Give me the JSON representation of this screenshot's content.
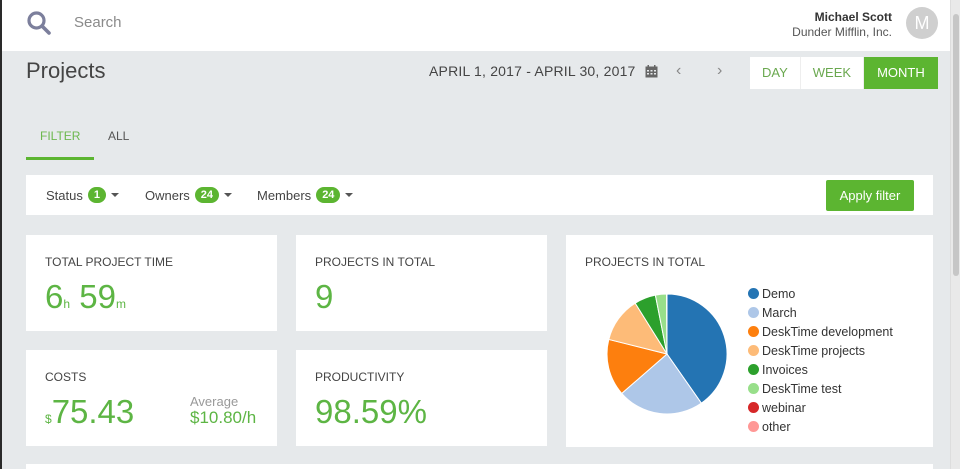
{
  "header": {
    "search_placeholder": "Search",
    "user_name": "Michael Scott",
    "user_company": "Dunder Mifflin, Inc.",
    "avatar_initial": "M"
  },
  "page": {
    "title": "Projects",
    "date_range": "APRIL 1, 2017 - APRIL 30, 2017",
    "prev_label": "‹",
    "next_label": "›",
    "periods": [
      {
        "label": "DAY",
        "active": false
      },
      {
        "label": "WEEK",
        "active": false
      },
      {
        "label": "MONTH",
        "active": true
      }
    ]
  },
  "tabs": [
    {
      "label": "FILTER",
      "active": true
    },
    {
      "label": "ALL",
      "active": false
    }
  ],
  "filters": {
    "status": {
      "label": "Status",
      "count": "1"
    },
    "owners": {
      "label": "Owners",
      "count": "24"
    },
    "members": {
      "label": "Members",
      "count": "24"
    },
    "apply_label": "Apply filter"
  },
  "cards": {
    "total_time": {
      "title": "TOTAL PROJECT TIME",
      "hours": "6",
      "hours_unit": "h",
      "minutes": "59",
      "minutes_unit": "m"
    },
    "projects_total": {
      "title": "PROJECTS IN TOTAL",
      "value": "9"
    },
    "costs": {
      "title": "COSTS",
      "currency": "$",
      "value": "75.43",
      "average_label": "Average",
      "average_value": "$10.80/h"
    },
    "productivity": {
      "title": "PRODUCTIVITY",
      "value": "98.59%"
    },
    "pie": {
      "title": "PROJECTS IN TOTAL"
    }
  },
  "colors": {
    "accent": "#5cb531",
    "accent_text": "#5db544"
  },
  "chart_data": {
    "type": "pie",
    "title": "PROJECTS IN TOTAL",
    "legend_position": "right",
    "categories": [
      "Demo",
      "March",
      "DeskTime development",
      "DeskTime projects",
      "Invoices",
      "DeskTime test",
      "webinar",
      "other"
    ],
    "values": [
      40.3,
      23.3,
      15.3,
      12.2,
      5.8,
      3.0,
      0.05,
      0.05
    ],
    "colors": [
      "#2474b3",
      "#aec7e8",
      "#fd7f0e",
      "#fdbb78",
      "#2ca02c",
      "#98df8a",
      "#d62728",
      "#ff9896"
    ]
  }
}
